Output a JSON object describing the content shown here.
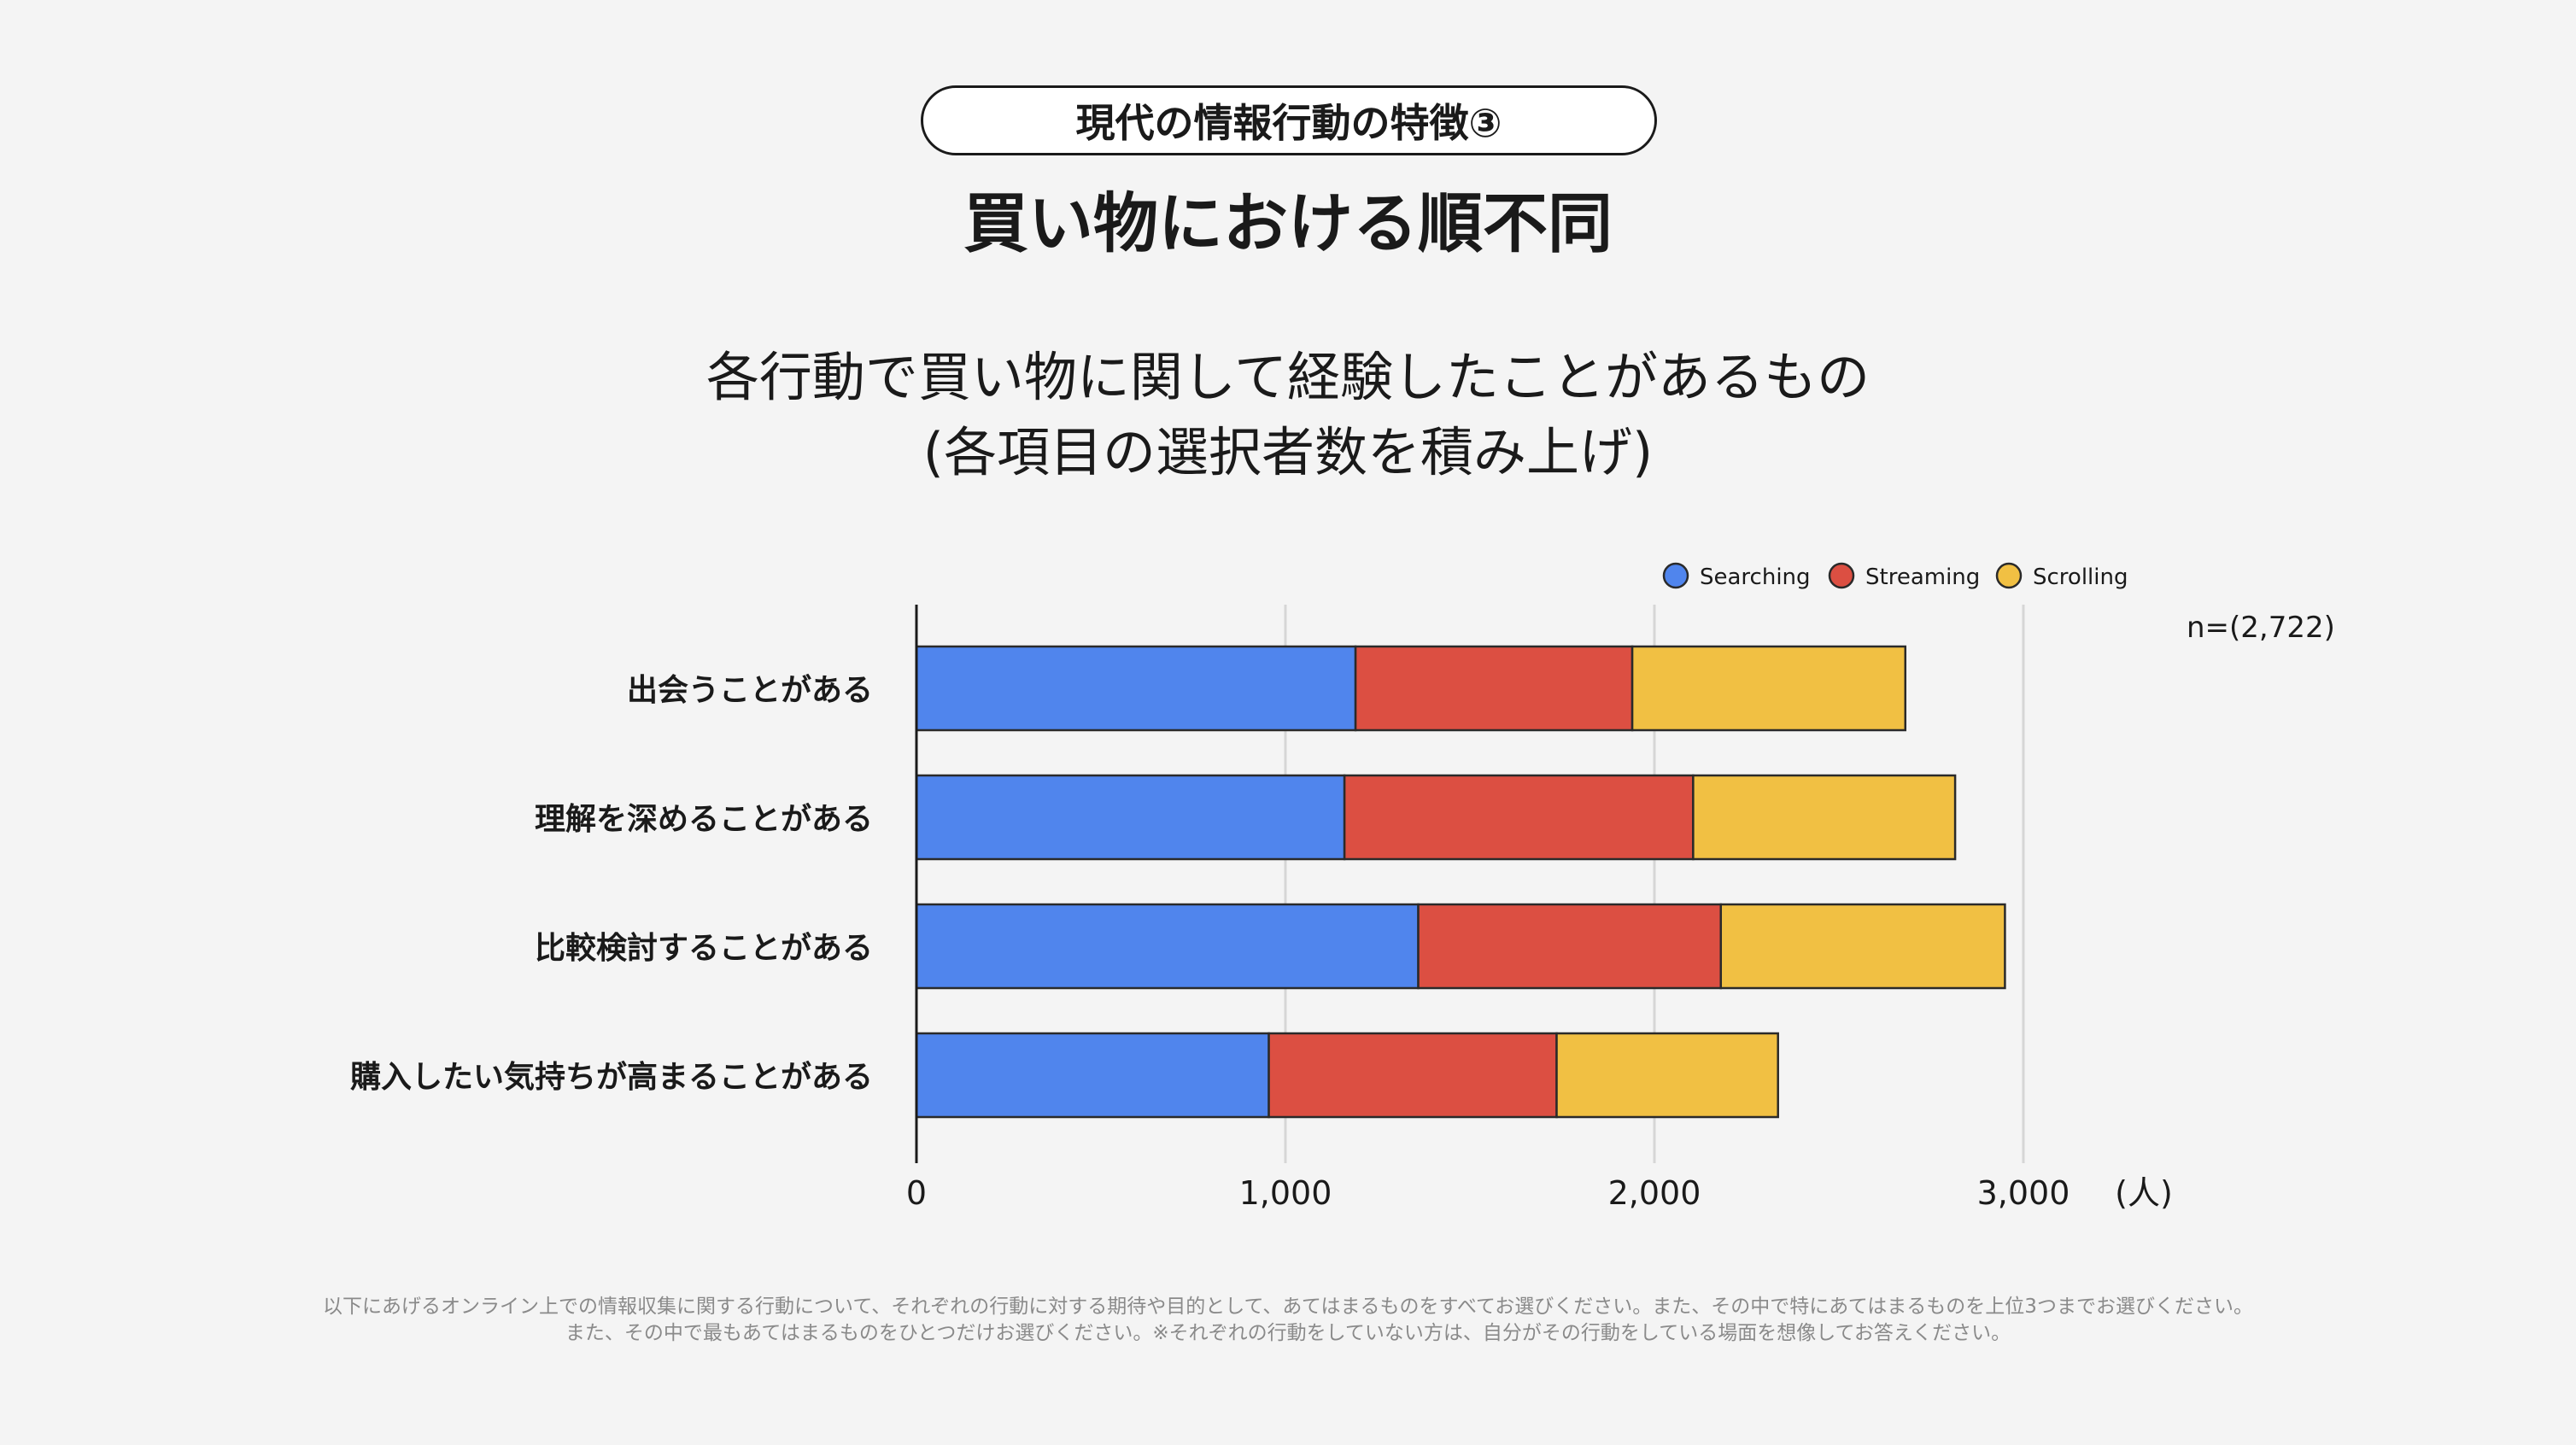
{
  "header": {
    "badge": "現代の情報行動の特徴③",
    "title": "買い物における順不同"
  },
  "chart_heading": {
    "line1": "各行動で買い物に関して経験したことがあるもの",
    "line2": "(各項目の選択者数を積み上げ)"
  },
  "footnote": {
    "line1": "以下にあげるオンライン上での情報収集に関する行動について、それぞれの行動に対する期待や目的として、あてはまるものをすべてお選びください。また、その中で特にあてはまるものを上位3つまでお選びください。",
    "line2": "また、その中で最もあてはまるものをひとつだけお選びください。※それぞれの行動をしていない方は、自分がその行動をしている場面を想像してお答えください。"
  },
  "chart_data": {
    "type": "bar",
    "orientation": "horizontal",
    "stacked": true,
    "categories": [
      "出会うことがある",
      "理解を深めることがある",
      "比較検討することがある",
      "購入したい気持ちが高まることがある"
    ],
    "series": [
      {
        "name": "Searching",
        "color": "#5085ed",
        "values": [
          1190,
          1160,
          1360,
          955
        ]
      },
      {
        "name": "Streaming",
        "color": "#dc4f42",
        "values": [
          750,
          945,
          820,
          780
        ]
      },
      {
        "name": "Scrolling",
        "color": "#f1c043",
        "values": [
          740,
          710,
          770,
          600
        ]
      }
    ],
    "xlim": [
      0,
      3000
    ],
    "xticks": [
      0,
      1000,
      2000,
      3000
    ],
    "xtick_labels": [
      "0",
      "1,000",
      "2,000",
      "3,000"
    ],
    "xunit": "(人)",
    "sample_size": "n=(2,722)",
    "legend_position": "top-right",
    "grid": true
  }
}
